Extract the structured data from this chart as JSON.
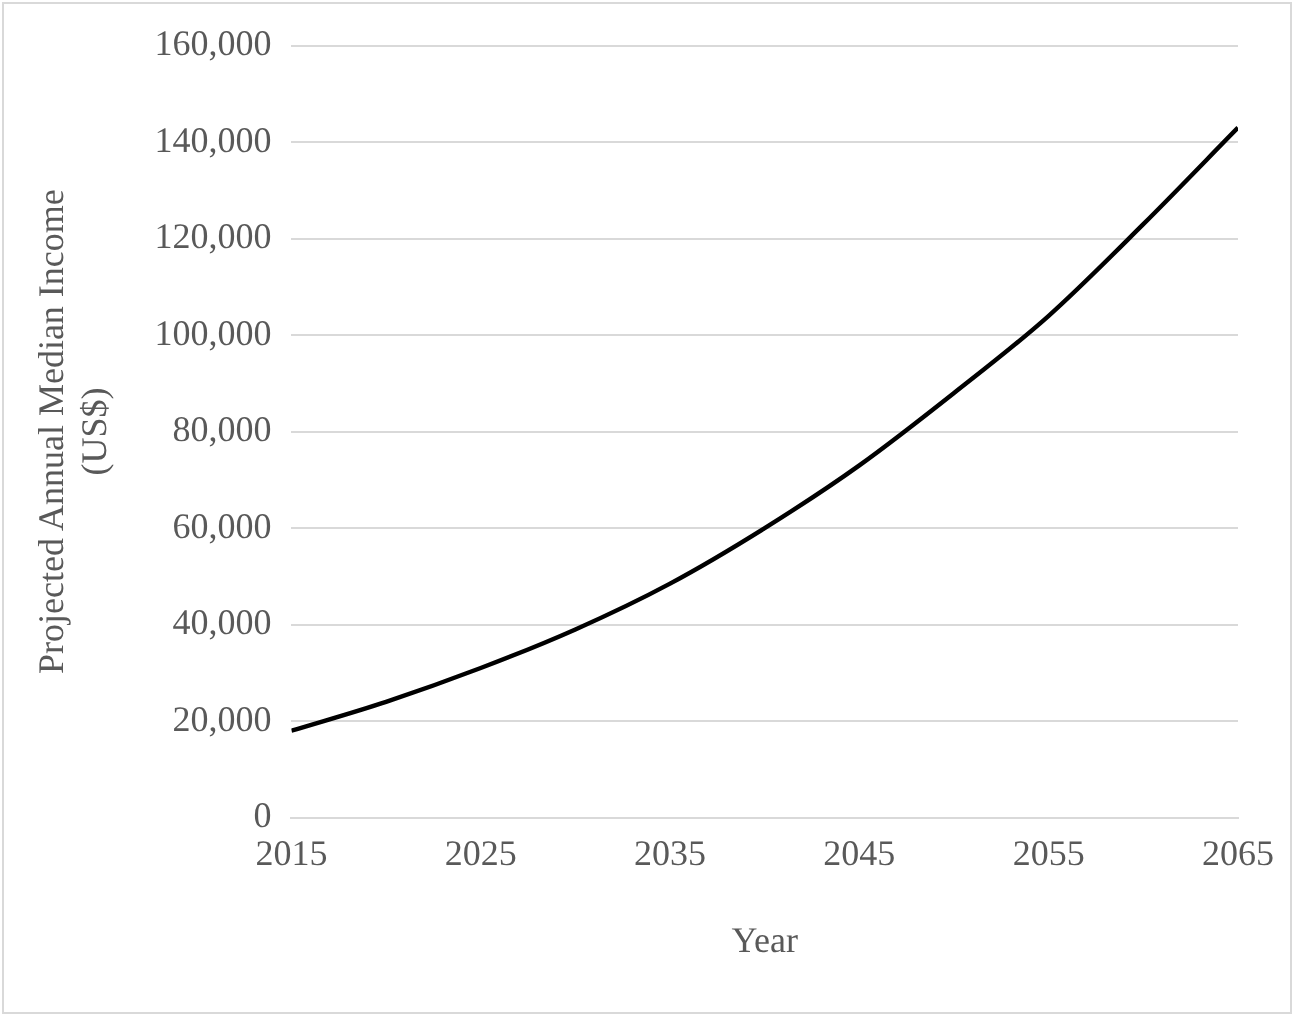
{
  "chart_data": {
    "type": "line",
    "xlabel": "Year",
    "ylabel": "Projected Annual Median Income (US$)",
    "x": [
      2015,
      2020,
      2025,
      2030,
      2035,
      2040,
      2045,
      2050,
      2055,
      2060,
      2065
    ],
    "series": [
      {
        "color": "#000000",
        "values": [
          18000,
          24000,
          31000,
          39000,
          48500,
          60000,
          73000,
          88000,
          104000,
          123000,
          143000
        ]
      }
    ],
    "xlim": [
      2015,
      2065
    ],
    "xticks": [
      2015,
      2025,
      2035,
      2045,
      2055,
      2065
    ],
    "ylim": [
      0,
      160000
    ],
    "yticks": [
      {
        "value": 0,
        "label": "0"
      },
      {
        "value": 20000,
        "label": "20,000"
      },
      {
        "value": 40000,
        "label": "40,000"
      },
      {
        "value": 60000,
        "label": "60,000"
      },
      {
        "value": 80000,
        "label": "80,000"
      },
      {
        "value": 100000,
        "label": "100,000"
      },
      {
        "value": 120000,
        "label": "120,000"
      },
      {
        "value": 140000,
        "label": "140,000"
      },
      {
        "value": 160000,
        "label": "160,000"
      }
    ],
    "grid": "y",
    "legend": false,
    "marker": "none",
    "line_style": "solid"
  }
}
